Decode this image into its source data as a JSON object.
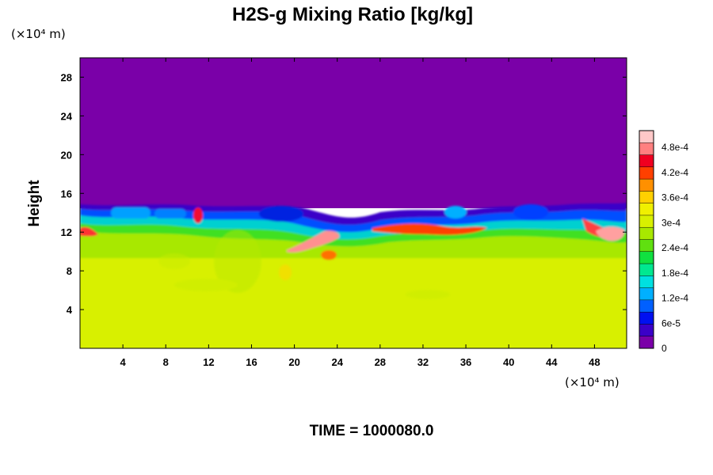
{
  "chart_data": {
    "type": "heatmap",
    "title": "H2S-g Mixing Ratio [kg/kg]",
    "ylabel": "Height",
    "x_unit": "(×10⁴ m)",
    "y_unit": "(×10⁴ m)",
    "footer": "TIME = 1000080.0",
    "xlim": [
      0,
      51
    ],
    "ylim": [
      0,
      30
    ],
    "x_ticks": [
      4,
      8,
      12,
      16,
      20,
      24,
      28,
      32,
      36,
      40,
      44,
      48
    ],
    "y_ticks": [
      4,
      8,
      12,
      16,
      20,
      24,
      28
    ],
    "colorbar": {
      "range": [
        0,
        0.00052
      ],
      "tick_values": [
        0,
        6e-05,
        0.00012,
        0.00018,
        0.00024,
        0.0003,
        0.00036,
        0.00042,
        0.00048
      ],
      "tick_labels": [
        "0",
        "6e-5",
        "1.2e-4",
        "1.8e-4",
        "2.4e-4",
        "3e-4",
        "3.6e-4",
        "4.2e-4",
        "4.8e-4"
      ],
      "colors": [
        "#7a00a8",
        "#3b00c8",
        "#0010f0",
        "#0060ff",
        "#00b0ff",
        "#00e0e0",
        "#00e890",
        "#10e040",
        "#60e010",
        "#a8e800",
        "#d8f000",
        "#f0f000",
        "#ffd000",
        "#ff9000",
        "#ff4000",
        "#f00020",
        "#ff8080",
        "#ffc8c8"
      ]
    },
    "field_description": {
      "upper_layer": {
        "y_range": [
          15,
          30
        ],
        "value": 0
      },
      "lower_layer": {
        "y_range": [
          0,
          10
        ],
        "value": 0.00035
      },
      "mixing_band_y": [
        10,
        15
      ]
    }
  }
}
